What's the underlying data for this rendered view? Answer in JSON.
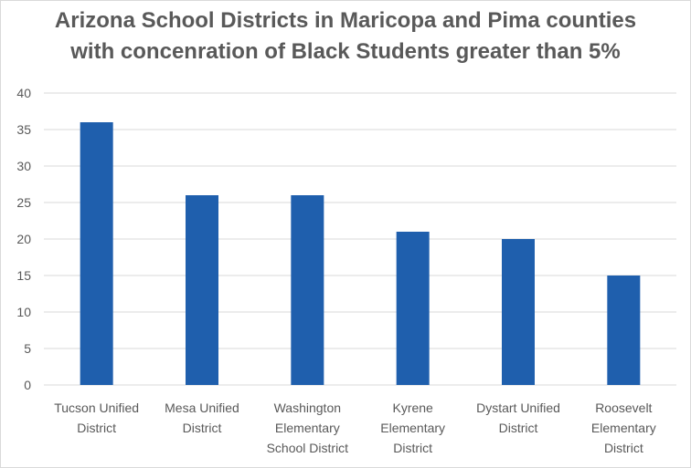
{
  "chart_data": {
    "type": "bar",
    "title_lines": [
      "Arizona School Districts in Maricopa and Pima counties",
      "with concenration of Black Students greater than 5%"
    ],
    "categories": [
      [
        "Tucson Unified",
        "District"
      ],
      [
        "Mesa Unified",
        "District"
      ],
      [
        "Washington",
        "Elementary",
        "School District"
      ],
      [
        "Kyrene",
        "Elementary",
        "District"
      ],
      [
        "Dystart Unified",
        "District"
      ],
      [
        "Roosevelt",
        "Elementary",
        "District"
      ]
    ],
    "values": [
      36,
      26,
      26,
      21,
      20,
      15
    ],
    "ylim": [
      0,
      40
    ],
    "yticks": [
      0,
      5,
      10,
      15,
      20,
      25,
      30,
      35,
      40
    ],
    "grid": true,
    "bar_color": "#1f5fad",
    "xlabel": "",
    "ylabel": ""
  }
}
